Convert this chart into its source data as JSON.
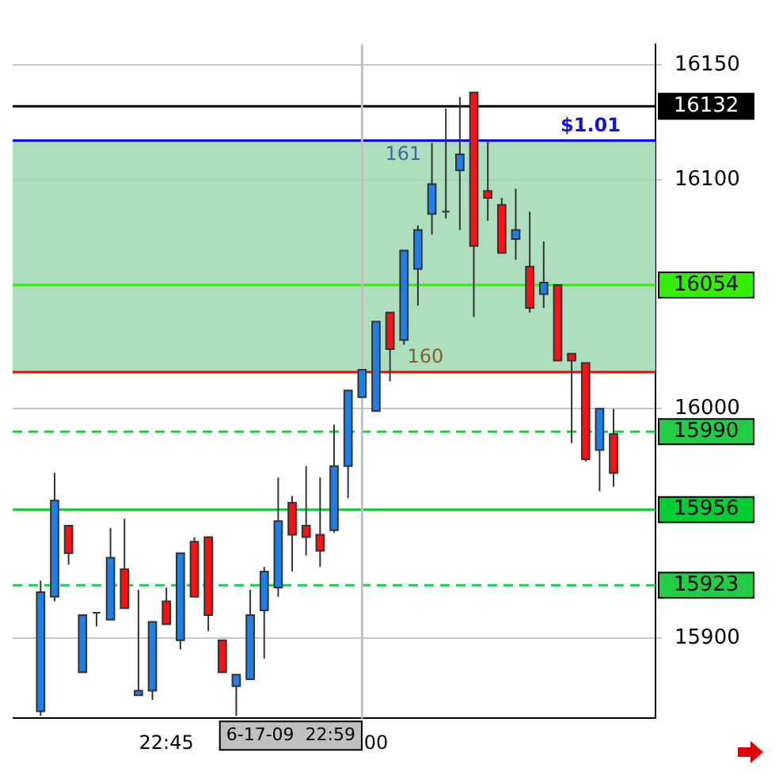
{
  "chart_data": {
    "type": "candlestick",
    "x": [
      "--06-17T22:36",
      "--06-17T22:37",
      "--06-17T22:38",
      "--06-17T22:39",
      "--06-17T22:40",
      "--06-17T22:41",
      "--06-17T22:42",
      "--06-17T22:43",
      "--06-17T22:44",
      "--06-17T22:45",
      "--06-17T22:46",
      "--06-17T22:47",
      "--06-17T22:48",
      "--06-17T22:49",
      "--06-17T22:50",
      "--06-17T22:51",
      "--06-17T22:52",
      "--06-17T22:53",
      "--06-17T22:54",
      "--06-17T22:55",
      "--06-17T22:56",
      "--06-17T22:57",
      "--06-17T22:58",
      "--06-17T22:59",
      "--06-17T23:00",
      "--06-17T23:01",
      "--06-17T23:02",
      "--06-17T23:03",
      "--06-17T23:04",
      "--06-17T23:05",
      "--06-17T23:06",
      "--06-17T23:07",
      "--06-17T23:08",
      "--06-17T23:09",
      "--06-17T23:10",
      "--06-17T23:11",
      "--06-17T23:12",
      "--06-17T23:13",
      "--06-17T23:14",
      "--06-17T23:15",
      "--06-17T23:16",
      "--06-17T23:17"
    ],
    "ohlc": [
      [
        15868,
        15925,
        15866,
        15920
      ],
      [
        15918,
        15972,
        15916,
        15960
      ],
      [
        15949,
        15949,
        15932,
        15937
      ],
      [
        15885,
        15910,
        15885,
        15910
      ],
      [
        15911,
        15911,
        15905,
        15911
      ],
      [
        15908,
        15948,
        15908,
        15935
      ],
      [
        15930,
        15952,
        15913,
        15913
      ],
      [
        15875,
        15921,
        15875,
        15877
      ],
      [
        15877,
        15907,
        15873,
        15907
      ],
      [
        15916,
        15922,
        15906,
        15906
      ],
      [
        15899,
        15937,
        15895,
        15937
      ],
      [
        15942,
        15944,
        15918,
        15918
      ],
      [
        15944,
        15944,
        15903,
        15910
      ],
      [
        15899,
        15899,
        15885,
        15885
      ],
      [
        15879,
        15884,
        15866,
        15884
      ],
      [
        15882,
        15921,
        15882,
        15910
      ],
      [
        15912,
        15931,
        15891,
        15929
      ],
      [
        15922,
        15970,
        15918,
        15951
      ],
      [
        15959,
        15962,
        15929,
        15945
      ],
      [
        15949,
        15975,
        15936,
        15944
      ],
      [
        15945,
        15970,
        15931,
        15938
      ],
      [
        15947,
        15993,
        15946,
        15975
      ],
      [
        15975,
        16008,
        15961,
        16008
      ],
      [
        16005,
        16017,
        16005,
        16017
      ],
      [
        15999,
        16038,
        15999,
        16038
      ],
      [
        16042,
        16042,
        16012,
        16026
      ],
      [
        16030,
        16069,
        16028,
        16069
      ],
      [
        16061,
        16080,
        16045,
        16078
      ],
      [
        16085,
        16116,
        16076,
        16098
      ],
      [
        16086,
        16131,
        16083,
        16086
      ],
      [
        16104,
        16136,
        16078,
        16111
      ],
      [
        16138,
        16138,
        16040,
        16071
      ],
      [
        16095,
        16117,
        16082,
        16092
      ],
      [
        16089,
        16092,
        16068,
        16068
      ],
      [
        16074,
        16096,
        16065,
        16078
      ],
      [
        16062,
        16086,
        16042,
        16044
      ],
      [
        16050,
        16073,
        16044,
        16055
      ],
      [
        16054,
        16054,
        16021,
        16021
      ],
      [
        16024,
        16024,
        15985,
        16021
      ],
      [
        16020,
        16020,
        15977,
        15978
      ],
      [
        15982,
        16000,
        15964,
        16000
      ],
      [
        15989,
        16000,
        15966,
        15972
      ]
    ],
    "xlim": [
      "--06-17T22:34",
      "--06-17T23:20"
    ],
    "xticks": [
      {
        "value": "--06-17T22:45",
        "label": "22:45"
      },
      {
        "value": "--06-17T23:00",
        "label": "00"
      }
    ],
    "ylim": [
      15865,
      16159
    ],
    "yticks": [
      15900,
      16000,
      16100,
      16150
    ],
    "grid": "y",
    "ref_lines": [
      {
        "axis": "y",
        "value": 16132,
        "label": "16132",
        "color": "#000000"
      },
      {
        "axis": "y",
        "value": 16117,
        "color": "#0000ff"
      },
      {
        "axis": "y",
        "value": 16016,
        "color": "#ff0000"
      },
      {
        "axis": "y",
        "value": 16054,
        "label": "16054",
        "color": "#33ee00"
      },
      {
        "axis": "y",
        "value": 15990,
        "label": "15990",
        "color": "#22cc44",
        "line_style": "dashed"
      },
      {
        "axis": "y",
        "value": 15956,
        "label": "15956",
        "color": "#00cc33"
      },
      {
        "axis": "y",
        "value": 15923,
        "label": "15923",
        "color": "#22cc44",
        "line_style": "dashed"
      },
      {
        "axis": "x",
        "value": "--06-17T22:59",
        "label": "6-17-09  22:59",
        "color": "#c0c0c0"
      }
    ],
    "bands": [
      {
        "axis": "y",
        "from": 16016,
        "to": 16117,
        "color": "#9fd9b4"
      }
    ],
    "annotations": [
      "$1.01",
      "161",
      "160"
    ]
  }
}
